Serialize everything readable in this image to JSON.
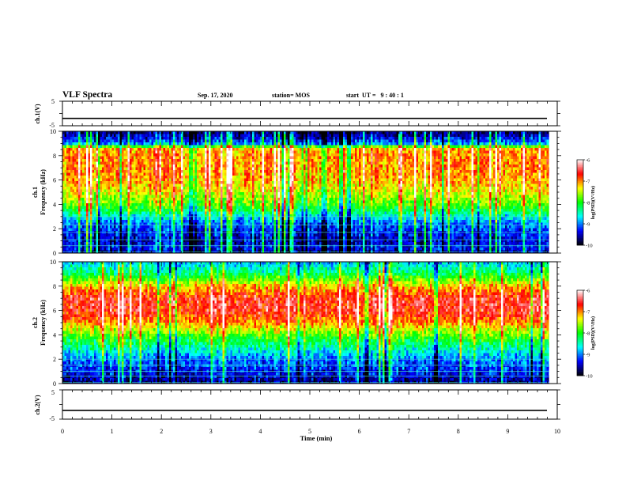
{
  "header": {
    "title": "VLF Spectra",
    "date": "Sep. 17, 2020",
    "station": "station= MOS",
    "start_time": "start  UT =   9 : 40 : 1"
  },
  "colors": {
    "colormap": [
      "#000000",
      "#0000ff",
      "#00ffff",
      "#00ff00",
      "#ffff00",
      "#ff0000",
      "#ffffff"
    ],
    "signal_line": "#000000",
    "harmonic_lines": "#40e0d0"
  },
  "chart_data": [
    {
      "type": "line",
      "panel": "ch1",
      "ylabel": "ch.1(V)",
      "ylim": [
        -5,
        5
      ],
      "yticks": [
        "5",
        "-5"
      ],
      "level": -2
    },
    {
      "type": "heatmap",
      "panel": "spec1",
      "ylabel_top": "ch.1",
      "ylabel": "Frequency (kHz)",
      "ylim": [
        0,
        10
      ],
      "yticks": [
        "0",
        "2",
        "4",
        "6",
        "8",
        "10"
      ],
      "colorbar": {
        "label": "log(PSD)(V²/Hz)",
        "range": [
          -10,
          -6
        ],
        "ticks": [
          "-6",
          "-7",
          "-8",
          "-9",
          "-10"
        ]
      },
      "band_profile": [
        [
          0.0,
          -9.6
        ],
        [
          0.5,
          -9.3
        ],
        [
          1.0,
          -9.5
        ],
        [
          2.0,
          -9.2
        ],
        [
          2.5,
          -9.0
        ],
        [
          3.0,
          -8.6
        ],
        [
          3.5,
          -8.2
        ],
        [
          4.0,
          -7.8
        ],
        [
          5.0,
          -7.4
        ],
        [
          6.0,
          -7.1
        ],
        [
          7.0,
          -7.0
        ],
        [
          8.0,
          -7.0
        ],
        [
          8.6,
          -7.1
        ],
        [
          9.0,
          -9.0
        ],
        [
          10.0,
          -9.8
        ]
      ],
      "line_frequencies_khz": [
        0.1,
        0.6,
        1.1,
        1.7,
        2.3,
        3.0
      ]
    },
    {
      "type": "heatmap",
      "panel": "spec2",
      "ylabel_top": "ch.2",
      "ylabel": "Frequency (kHz)",
      "ylim": [
        0,
        10
      ],
      "yticks": [
        "0",
        "2",
        "4",
        "6",
        "8",
        "10"
      ],
      "colorbar": {
        "label": "log(PSD)(V²/Hz)",
        "range": [
          -10,
          -6
        ],
        "ticks": [
          "-6",
          "-7",
          "-8",
          "-9",
          "-10"
        ]
      },
      "band_profile": [
        [
          0.0,
          -9.7
        ],
        [
          1.0,
          -9.3
        ],
        [
          2.0,
          -9.0
        ],
        [
          3.0,
          -8.4
        ],
        [
          4.0,
          -7.8
        ],
        [
          5.0,
          -7.0
        ],
        [
          6.0,
          -6.6
        ],
        [
          7.0,
          -6.6
        ],
        [
          8.0,
          -7.2
        ],
        [
          9.0,
          -8.2
        ],
        [
          10.0,
          -8.8
        ]
      ],
      "line_frequencies_khz": [
        0.1,
        0.6,
        1.0,
        1.5,
        2.0
      ]
    },
    {
      "type": "line",
      "panel": "ch2",
      "ylabel": "ch.2(V)",
      "ylim": [
        -5,
        5
      ],
      "yticks": [
        "5",
        "-5"
      ],
      "level": -2
    }
  ],
  "x_axis": {
    "label": "Time (min)",
    "xlim": [
      0,
      10
    ],
    "ticks": [
      "0",
      "1",
      "2",
      "3",
      "4",
      "5",
      "6",
      "7",
      "8",
      "9",
      "10"
    ],
    "data_end_min": 9.83
  }
}
